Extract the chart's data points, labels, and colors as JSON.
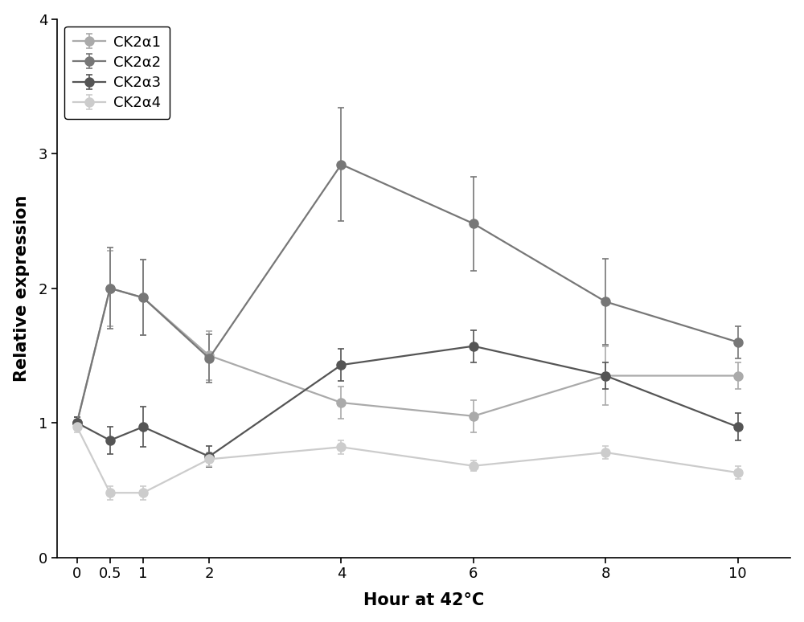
{
  "x": [
    0,
    0.5,
    1,
    2,
    4,
    6,
    8,
    10
  ],
  "series_order": [
    "CK2α1",
    "CK2α2",
    "CK2α3",
    "CK2α4"
  ],
  "series": {
    "CK2α1": {
      "y": [
        1.0,
        2.0,
        1.93,
        1.5,
        1.15,
        1.05,
        1.35,
        1.35
      ],
      "yerr": [
        0.04,
        0.28,
        0.28,
        0.18,
        0.12,
        0.12,
        0.22,
        0.1
      ],
      "color": "#aaaaaa"
    },
    "CK2α2": {
      "y": [
        1.0,
        2.0,
        1.93,
        1.48,
        2.92,
        2.48,
        1.9,
        1.6
      ],
      "yerr": [
        0.04,
        0.3,
        0.28,
        0.18,
        0.42,
        0.35,
        0.32,
        0.12
      ],
      "color": "#777777"
    },
    "CK2α3": {
      "y": [
        1.0,
        0.87,
        0.97,
        0.75,
        1.43,
        1.57,
        1.35,
        0.97
      ],
      "yerr": [
        0.04,
        0.1,
        0.15,
        0.08,
        0.12,
        0.12,
        0.1,
        0.1
      ],
      "color": "#555555"
    },
    "CK2α4": {
      "y": [
        0.97,
        0.48,
        0.48,
        0.73,
        0.82,
        0.68,
        0.78,
        0.63
      ],
      "yerr": [
        0.04,
        0.05,
        0.05,
        0.05,
        0.05,
        0.04,
        0.05,
        0.05
      ],
      "color": "#cccccc"
    }
  },
  "xlabel": "Hour at 42°C",
  "ylabel": "Relative expression",
  "ylim": [
    0,
    4
  ],
  "yticks": [
    0,
    1,
    2,
    3,
    4
  ],
  "xticks": [
    0,
    0.5,
    1,
    2,
    4,
    6,
    8,
    10
  ],
  "xlim": [
    -0.3,
    10.8
  ],
  "background_color": "#ffffff",
  "label_fontsize": 15,
  "tick_fontsize": 13,
  "legend_fontsize": 13,
  "linewidth": 1.6,
  "markersize": 8
}
